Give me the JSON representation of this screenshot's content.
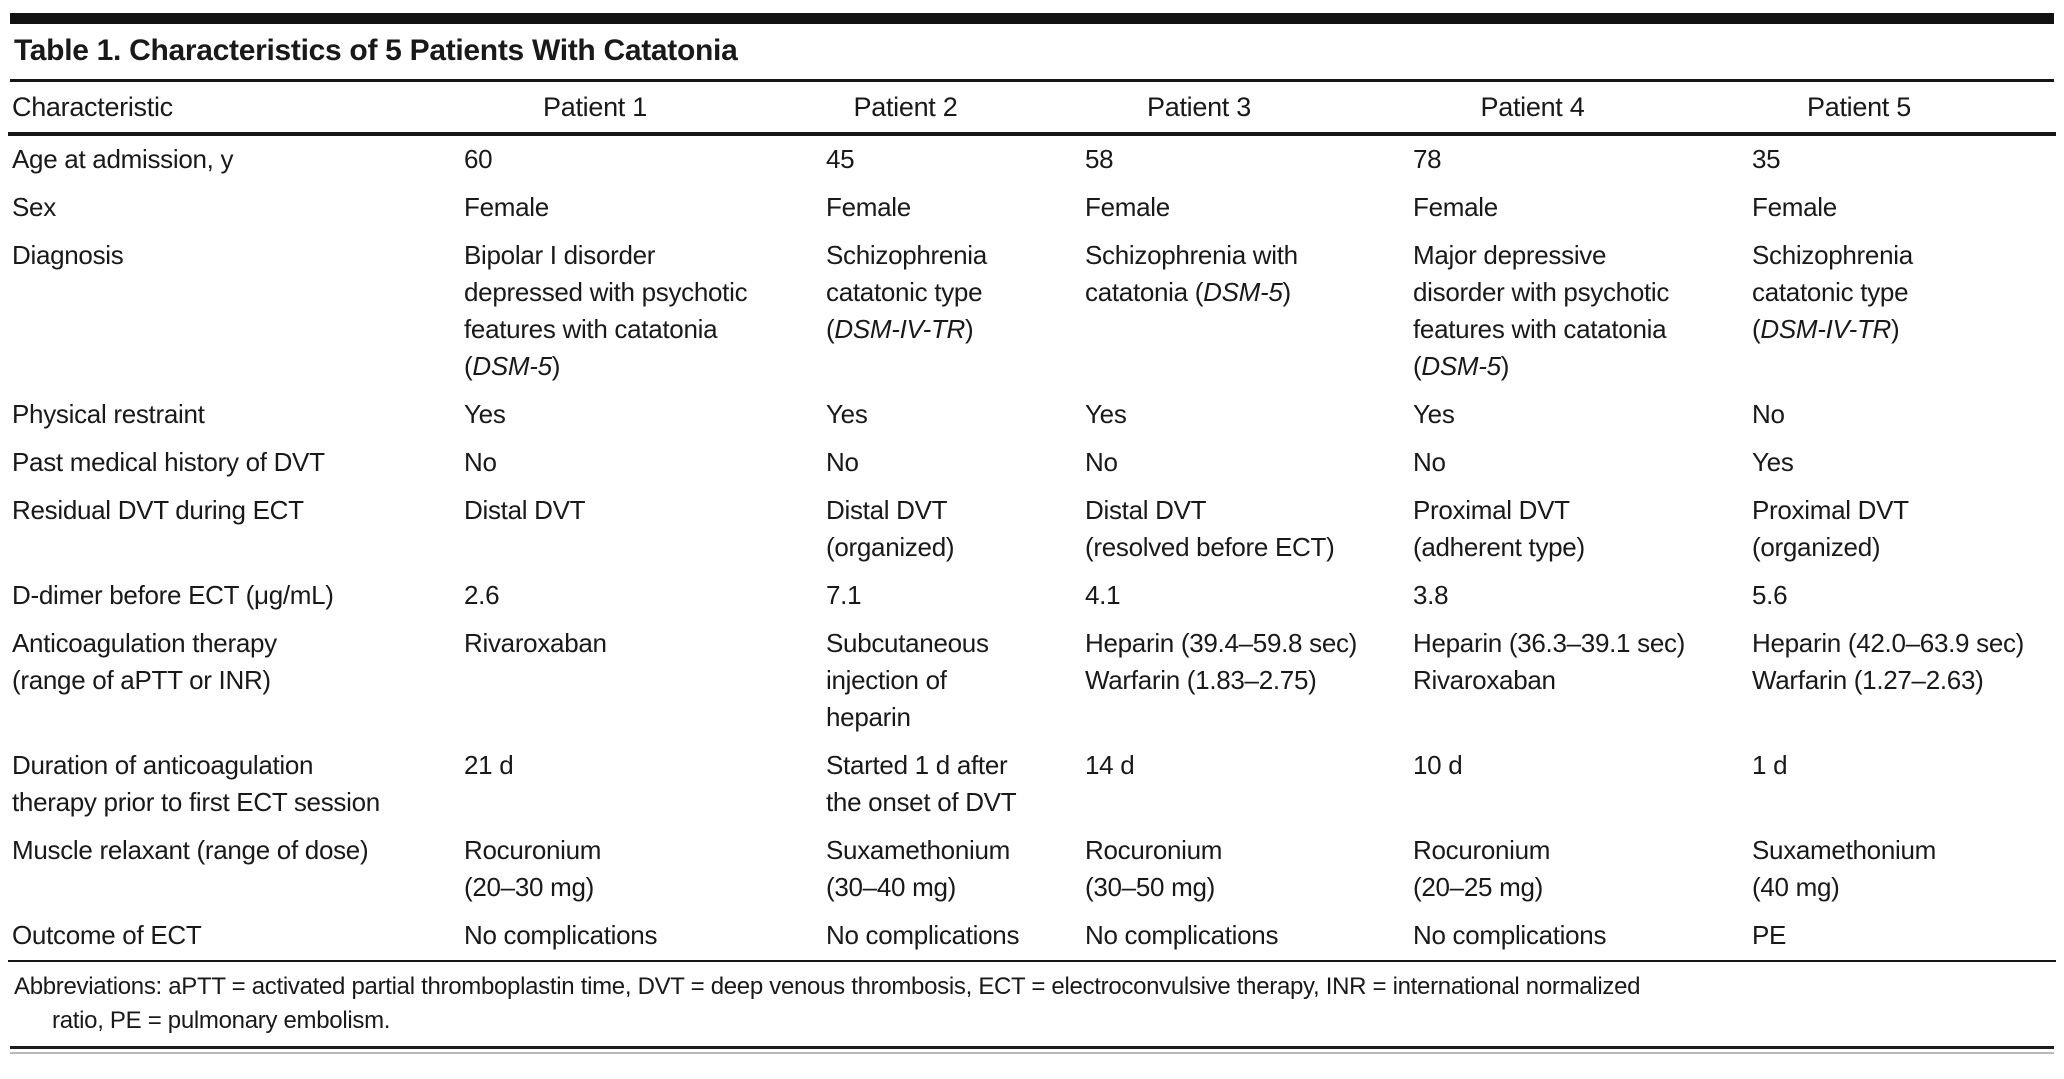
{
  "table": {
    "title": "Table 1. Characteristics of 5 Patients With Catatonia",
    "columns": [
      "Characteristic",
      "Patient 1",
      "Patient 2",
      "Patient 3",
      "Patient 4",
      "Patient 5"
    ],
    "rows": [
      {
        "label": "Age at admission, y",
        "values": [
          "60",
          "45",
          "58",
          "78",
          "35"
        ]
      },
      {
        "label": "Sex",
        "values": [
          "Female",
          "Female",
          "Female",
          "Female",
          "Female"
        ]
      },
      {
        "label": "Diagnosis",
        "values": [
          "Bipolar I disorder\ndepressed with psychotic\nfeatures with catatonia\n(DSM-5)",
          "Schizophrenia\ncatatonic type\n(DSM-IV-TR)",
          "Schizophrenia with\ncatatonia (DSM-5)",
          "Major depressive\ndisorder with psychotic\nfeatures with catatonia\n(DSM-5)",
          "Schizophrenia\ncatatonic type\n(DSM-IV-TR)"
        ]
      },
      {
        "label": "Physical restraint",
        "values": [
          "Yes",
          "Yes",
          "Yes",
          "Yes",
          "No"
        ]
      },
      {
        "label": "Past medical history of DVT",
        "values": [
          "No",
          "No",
          "No",
          "No",
          "Yes"
        ]
      },
      {
        "label": "Residual DVT during ECT",
        "values": [
          "Distal DVT",
          "Distal DVT\n(organized)",
          "Distal DVT\n(resolved before ECT)",
          "Proximal DVT\n(adherent type)",
          "Proximal DVT\n(organized)"
        ]
      },
      {
        "label": "D-dimer before ECT (μg/mL)",
        "values": [
          "2.6",
          "7.1",
          "4.1",
          "3.8",
          "5.6"
        ]
      },
      {
        "label": "Anticoagulation therapy\n(range of aPTT or INR)",
        "values": [
          "Rivaroxaban",
          "Subcutaneous\ninjection of\nheparin",
          "Heparin (39.4–59.8 sec)\nWarfarin (1.83–2.75)",
          "Heparin (36.3–39.1 sec)\nRivaroxaban",
          "Heparin (42.0–63.9 sec)\nWarfarin (1.27–2.63)"
        ]
      },
      {
        "label": "Duration of anticoagulation\ntherapy prior to first ECT session",
        "values": [
          "21 d",
          "Started 1 d after\nthe onset of DVT",
          "14 d",
          "10 d",
          "1 d"
        ]
      },
      {
        "label": "Muscle relaxant (range of dose)",
        "values": [
          "Rocuronium\n(20–30 mg)",
          "Suxamethonium\n(30–40 mg)",
          "Rocuronium\n(30–50 mg)",
          "Rocuronium\n(20–25 mg)",
          "Suxamethonium\n(40 mg)"
        ]
      },
      {
        "label": "Outcome of ECT",
        "values": [
          "No complications",
          "No complications",
          "No complications",
          "No complications",
          "PE"
        ]
      }
    ],
    "footnote": "Abbreviations: aPTT = activated partial thromboplastin time, DVT = deep venous thrombosis, ECT = electroconvulsive therapy, INR = international normalized\nratio, PE = pulmonary embolism.",
    "italic_terms": [
      "DSM-IV-TR",
      "DSM-5"
    ]
  }
}
